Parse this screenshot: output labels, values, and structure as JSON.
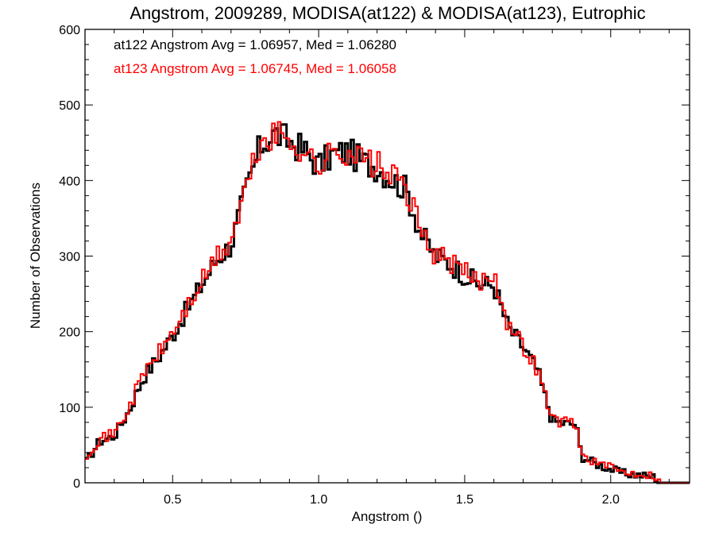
{
  "chart_data": {
    "type": "histogram",
    "title": "Angstrom, 2009289, MODISA(at122) & MODISA(at123), Eutrophic",
    "xlabel": "Angstrom ()",
    "ylabel": "Number of Observations",
    "xlim": [
      0.2,
      2.27
    ],
    "ylim": [
      0,
      600
    ],
    "xticks": [
      {
        "value": 0.5,
        "label": "0.5"
      },
      {
        "value": 1.0,
        "label": "1.0"
      },
      {
        "value": 1.5,
        "label": "1.5"
      },
      {
        "value": 2.0,
        "label": "2.0"
      }
    ],
    "yticks": [
      {
        "value": 0,
        "label": "0"
      },
      {
        "value": 100,
        "label": "100"
      },
      {
        "value": 200,
        "label": "200"
      },
      {
        "value": 300,
        "label": "300"
      },
      {
        "value": 400,
        "label": "400"
      },
      {
        "value": 500,
        "label": "500"
      },
      {
        "value": 600,
        "label": "600"
      }
    ],
    "grid": false,
    "legend_position": "top-left",
    "bin_width": 0.01,
    "series": [
      {
        "name": "at122",
        "color": "#000000",
        "legend": "at122 Angstrom Avg = 1.06957, Med = 1.06280",
        "x": [
          0.2,
          0.25,
          0.3,
          0.35,
          0.4,
          0.45,
          0.5,
          0.55,
          0.6,
          0.65,
          0.7,
          0.75,
          0.8,
          0.85,
          0.9,
          0.95,
          1.0,
          1.05,
          1.1,
          1.15,
          1.2,
          1.25,
          1.3,
          1.35,
          1.4,
          1.45,
          1.5,
          1.55,
          1.6,
          1.65,
          1.7,
          1.75,
          1.8,
          1.85,
          1.88,
          1.9,
          1.95,
          2.0,
          2.05,
          2.1,
          2.15,
          2.17,
          2.27
        ],
        "values": [
          25,
          55,
          62,
          95,
          140,
          165,
          195,
          230,
          262,
          295,
          315,
          385,
          445,
          462,
          452,
          440,
          420,
          435,
          438,
          425,
          418,
          402,
          388,
          330,
          300,
          290,
          275,
          262,
          262,
          205,
          180,
          148,
          82,
          78,
          78,
          35,
          25,
          18,
          12,
          10,
          8,
          0,
          0
        ]
      },
      {
        "name": "at123",
        "color": "#ff0000",
        "legend": "at123 Angstrom Avg = 1.06745, Med = 1.06058",
        "x": [
          0.2,
          0.25,
          0.3,
          0.35,
          0.4,
          0.45,
          0.5,
          0.55,
          0.6,
          0.65,
          0.7,
          0.75,
          0.8,
          0.85,
          0.9,
          0.95,
          1.0,
          1.05,
          1.1,
          1.15,
          1.2,
          1.25,
          1.3,
          1.35,
          1.4,
          1.45,
          1.5,
          1.55,
          1.6,
          1.65,
          1.7,
          1.75,
          1.8,
          1.85,
          1.88,
          1.9,
          1.95,
          2.0,
          2.05,
          2.1,
          2.15,
          2.17,
          2.27
        ],
        "values": [
          35,
          58,
          65,
          98,
          145,
          170,
          198,
          232,
          265,
          298,
          318,
          388,
          448,
          460,
          455,
          438,
          418,
          437,
          440,
          428,
          420,
          405,
          390,
          332,
          302,
          292,
          278,
          265,
          280,
          208,
          182,
          150,
          84,
          80,
          80,
          37,
          27,
          20,
          14,
          12,
          10,
          0,
          0
        ]
      }
    ]
  }
}
